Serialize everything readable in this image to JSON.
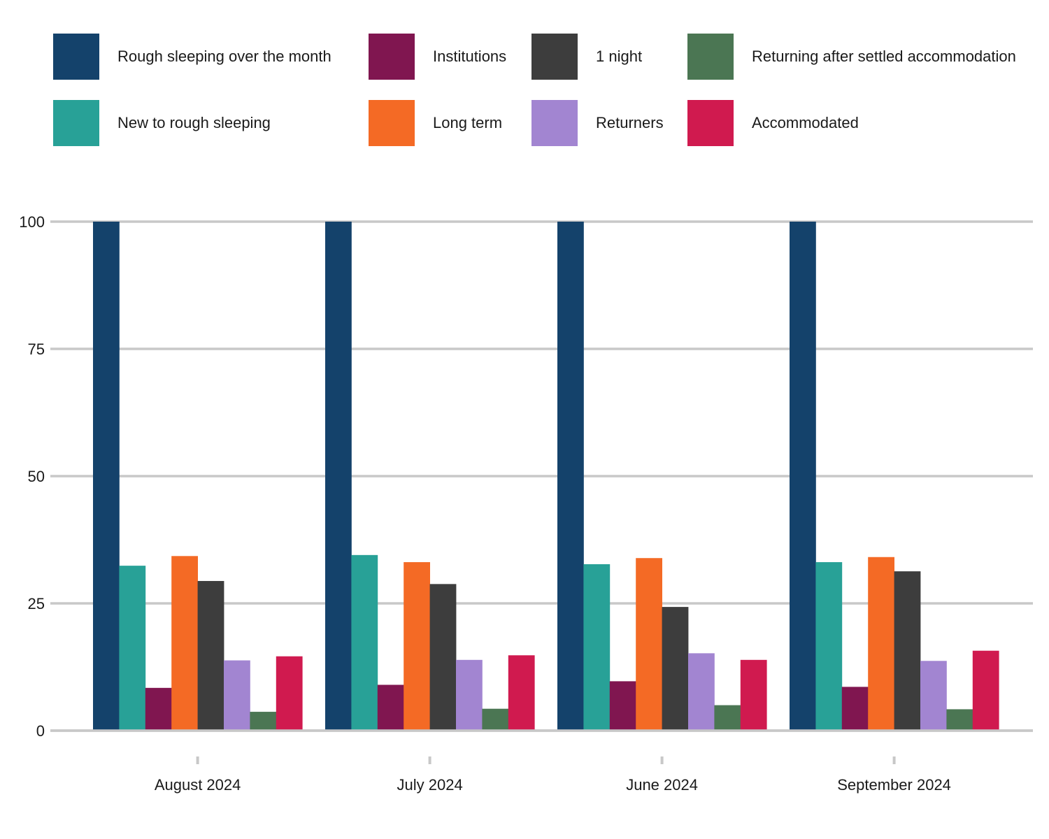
{
  "chart_data": {
    "type": "bar",
    "categories": [
      "August 2024",
      "July 2024",
      "June 2024",
      "September 2024"
    ],
    "ylim": [
      0,
      100
    ],
    "yticks": [
      0,
      25,
      50,
      75,
      100
    ],
    "grid": true,
    "legend_position": "top",
    "series": [
      {
        "name": "Rough sleeping over the month",
        "color": "#14426b",
        "values": [
          100,
          100,
          100,
          100
        ]
      },
      {
        "name": "New to rough sleeping",
        "color": "#28a197",
        "values": [
          32.4,
          34.5,
          32.7,
          33.1
        ]
      },
      {
        "name": "Institutions",
        "color": "#801650",
        "values": [
          8.4,
          9.0,
          9.7,
          8.6
        ]
      },
      {
        "name": "Long term",
        "color": "#f46a25",
        "values": [
          34.3,
          33.1,
          33.9,
          34.1
        ]
      },
      {
        "name": "1 night",
        "color": "#3d3d3d",
        "values": [
          29.4,
          28.8,
          24.3,
          31.3
        ]
      },
      {
        "name": "Returners",
        "color": "#a285d1",
        "values": [
          13.8,
          13.9,
          15.2,
          13.7
        ]
      },
      {
        "name": "Returning after settled accommodation",
        "color": "#4b7653",
        "values": [
          3.7,
          4.3,
          5.0,
          4.2
        ]
      },
      {
        "name": "Accommodated",
        "color": "#d01a4f",
        "values": [
          14.6,
          14.8,
          13.9,
          15.7
        ]
      }
    ]
  }
}
